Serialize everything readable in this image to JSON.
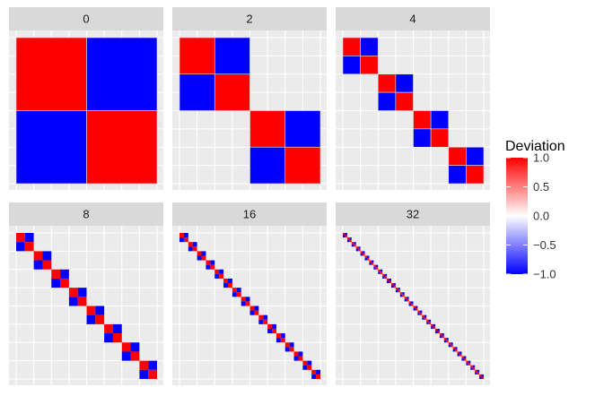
{
  "chart_data": {
    "type": "heatmap",
    "description_free": true,
    "facets": [
      {
        "label": "0",
        "blocks": 1
      },
      {
        "label": "2",
        "blocks": 2
      },
      {
        "label": "4",
        "blocks": 4
      },
      {
        "label": "8",
        "blocks": 8
      },
      {
        "label": "16",
        "blocks": 16
      },
      {
        "label": "32",
        "blocks": 32
      }
    ],
    "block_pattern": [
      [
        1,
        -1
      ],
      [
        -1,
        1
      ]
    ],
    "off_block_value": 0,
    "legend": {
      "title": "Deviation",
      "ticks": [
        1.0,
        0.5,
        0.0,
        -0.5,
        -1.0
      ],
      "tick_labels": [
        "1.0",
        "0.5",
        "0.0",
        "−0.5",
        "−1.0"
      ],
      "range": [
        -1,
        1
      ],
      "placement": "right"
    },
    "colors": {
      "high": "#ff0000",
      "mid": "#ffffff",
      "low": "#0000ff",
      "panel_background": "#ebebeb",
      "grid": "#ffffff",
      "strip_background": "#d9d9d9"
    }
  }
}
